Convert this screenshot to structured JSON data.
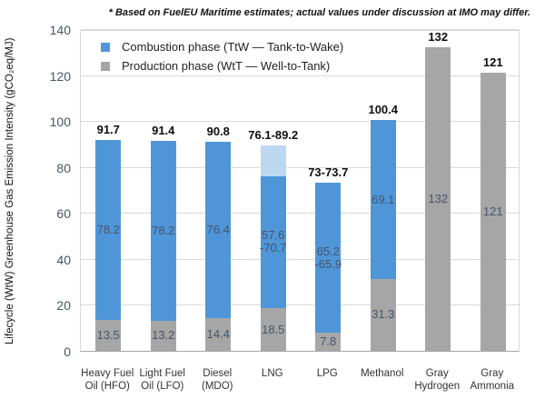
{
  "chart_data": {
    "type": "bar",
    "stacked": true,
    "note": "* Based on FuelEU Maritime estimates; actual values under discussion at IMO may differ.",
    "ylabel": "Lifecycle (WtW) Greenhouse Gas Emission Intensity (gCO₂eq/MJ)",
    "ylim": [
      0,
      140
    ],
    "yticks": [
      0,
      20,
      40,
      60,
      80,
      100,
      120,
      140
    ],
    "grid": true,
    "legend_position": "top-left-inside",
    "colors": {
      "combustion": "#4F96D8",
      "combustion_range_upper": "#BDD7EE",
      "production": "#A6A6A6",
      "inner_label": "#44546A",
      "tick_label": "#44546A",
      "gridline": "#D9D9D9",
      "axis_line": "#A6A6A6"
    },
    "legend": [
      {
        "series": "combustion",
        "label": "Combustion phase (TtW — Tank-to-Wake)",
        "color": "#4F96D8"
      },
      {
        "series": "production",
        "label": "Production phase (WtT — Well-to-Tank)",
        "color": "#A6A6A6"
      }
    ],
    "bars": [
      {
        "category_lines": [
          "Heavy Fuel",
          "Oil (HFO)"
        ],
        "total_label": "91.7",
        "segments": [
          {
            "series": "production",
            "value": 13.5,
            "label_lines": [
              "13.5"
            ],
            "color": "#A6A6A6"
          },
          {
            "series": "combustion",
            "value": 78.2,
            "label_lines": [
              "78.2"
            ],
            "color": "#4F96D8"
          }
        ]
      },
      {
        "category_lines": [
          "Light Fuel",
          "Oil (LFO)"
        ],
        "total_label": "91.4",
        "segments": [
          {
            "series": "production",
            "value": 13.2,
            "label_lines": [
              "13.2"
            ],
            "color": "#A6A6A6"
          },
          {
            "series": "combustion",
            "value": 78.2,
            "label_lines": [
              "78.2"
            ],
            "color": "#4F96D8"
          }
        ]
      },
      {
        "category_lines": [
          "Diesel",
          "(MDO)"
        ],
        "total_label": "90.8",
        "segments": [
          {
            "series": "production",
            "value": 14.4,
            "label_lines": [
              "14.4"
            ],
            "color": "#A6A6A6"
          },
          {
            "series": "combustion",
            "value": 76.4,
            "label_lines": [
              "76.4"
            ],
            "color": "#4F96D8"
          }
        ]
      },
      {
        "category_lines": [
          "LNG"
        ],
        "total_label": "76.1-89.2",
        "segments": [
          {
            "series": "production",
            "value": 18.5,
            "label_lines": [
              "18.5"
            ],
            "color": "#A6A6A6"
          },
          {
            "series": "combustion",
            "value": 57.6,
            "label_lines": [
              "57.6",
              "-70.7"
            ],
            "color": "#4F96D8"
          },
          {
            "series": "combustion_range_upper",
            "value": 13.1,
            "label_lines": [],
            "color": "#BDD7EE"
          }
        ]
      },
      {
        "category_lines": [
          "LPG"
        ],
        "total_label": "73-73.7",
        "segments": [
          {
            "series": "production",
            "value": 7.8,
            "label_lines": [
              "7.8"
            ],
            "color": "#A6A6A6"
          },
          {
            "series": "combustion",
            "value": 65.2,
            "label_lines": [
              "65.2",
              "-65.9"
            ],
            "color": "#4F96D8"
          }
        ]
      },
      {
        "category_lines": [
          "Methanol"
        ],
        "total_label": "100.4",
        "segments": [
          {
            "series": "production",
            "value": 31.3,
            "label_lines": [
              "31.3"
            ],
            "color": "#A6A6A6"
          },
          {
            "series": "combustion",
            "value": 69.1,
            "label_lines": [
              "69.1"
            ],
            "color": "#4F96D8"
          }
        ]
      },
      {
        "category_lines": [
          "Gray",
          "Hydrogen"
        ],
        "total_label": "132",
        "segments": [
          {
            "series": "production",
            "value": 132,
            "label_lines": [
              "132"
            ],
            "color": "#A6A6A6"
          }
        ]
      },
      {
        "category_lines": [
          "Gray",
          "Ammonia"
        ],
        "total_label": "121",
        "segments": [
          {
            "series": "production",
            "value": 121,
            "label_lines": [
              "121"
            ],
            "color": "#A6A6A6"
          }
        ]
      }
    ]
  }
}
